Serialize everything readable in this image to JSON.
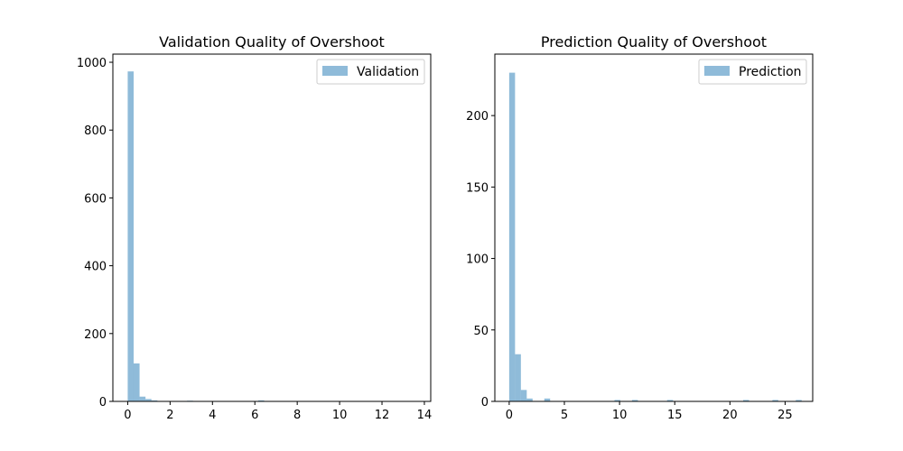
{
  "colors": {
    "bar": "#1f77b4",
    "bar_opacity": 0.5
  },
  "chart_data": [
    {
      "type": "bar",
      "title": "Validation Quality of Overshoot",
      "xlabel": "",
      "ylabel": "",
      "xlim": [
        -0.7,
        14.3
      ],
      "ylim": [
        0,
        1024
      ],
      "xticks": [
        0,
        2,
        4,
        6,
        8,
        10,
        12,
        14
      ],
      "yticks": [
        0,
        200,
        400,
        600,
        800,
        1000
      ],
      "legend": "top-right",
      "grid": false,
      "series": [
        {
          "name": "Validation",
          "bin_edges": [
            0.0,
            0.28,
            0.56,
            0.84,
            1.12,
            1.4,
            1.68,
            1.96,
            2.24,
            2.52,
            2.8,
            3.08,
            6.16,
            6.44
          ],
          "counts": [
            973,
            112,
            14,
            7,
            3,
            1,
            1,
            0,
            0,
            0,
            2,
            0,
            3
          ]
        }
      ]
    },
    {
      "type": "bar",
      "title": "Prediction Quality of Overshoot",
      "xlabel": "",
      "ylabel": "",
      "xlim": [
        -1.3,
        27.5
      ],
      "ylim": [
        0,
        243
      ],
      "xticks": [
        0,
        5,
        10,
        15,
        20,
        25
      ],
      "yticks": [
        0,
        50,
        100,
        150,
        200
      ],
      "legend": "top-right",
      "grid": false,
      "series": [
        {
          "name": "Prediction",
          "bin_edges": [
            0.0,
            0.53,
            1.06,
            1.59,
            2.12,
            3.18,
            3.71,
            9.54,
            10.07,
            11.13,
            11.66,
            14.31,
            14.84,
            21.2,
            21.73,
            23.85,
            24.38,
            25.97,
            26.5
          ],
          "counts": [
            230,
            33,
            8,
            2,
            0,
            2,
            0,
            1,
            0,
            1,
            0,
            1,
            0,
            1,
            0,
            1,
            0,
            1
          ]
        }
      ]
    }
  ]
}
